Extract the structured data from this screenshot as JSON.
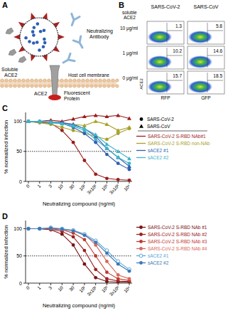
{
  "diagram": {
    "label": "A",
    "soluble_ace2": [
      "Soluble",
      "ACE2"
    ],
    "neutralizing_antibody": [
      "Neutralizing",
      "Antibody"
    ],
    "membrane": "Host cell membrane",
    "receptor": "ACE2",
    "fluorescent_protein": [
      "Fluorescent",
      "Protein"
    ]
  },
  "flow": {
    "label": "B",
    "title": [
      "soluble",
      "ACE2"
    ],
    "columns": [
      "SARS-CoV-2",
      "SARS-CoV"
    ],
    "rows": [
      {
        "label": "10 µg/ml",
        "percents": [
          1.3,
          5.8
        ]
      },
      {
        "label": "1 µg/ml",
        "percents": [
          10.2,
          14.6
        ]
      },
      {
        "label": "0 µg/ml",
        "percents": [
          15.7,
          18.5
        ]
      }
    ],
    "y_label": "ACE2",
    "x_labels": [
      "RFP",
      "GFP"
    ]
  },
  "chart_data": [
    {
      "type": "line",
      "label": "C",
      "xlabel": "Neutralizing compound (ng/ml)",
      "ylabel": "% normalized infection",
      "categories": [
        "0",
        "1",
        "3",
        "10",
        "30",
        "10²",
        "3x10²",
        "10³",
        "3x10³",
        "10⁴"
      ],
      "ylim": [
        0,
        115
      ],
      "yticks": [
        0,
        50,
        100
      ],
      "threshold": 50,
      "marker_legend": [
        {
          "name": "SARS-CoV-2",
          "marker": "circle"
        },
        {
          "name": "SARS-CoV",
          "marker": "triangle"
        }
      ],
      "series": [
        {
          "name": "SARS-CoV-2 S-RBD NAb#1",
          "color": "#9b1c1c",
          "lines": [
            {
              "marker": "circle",
              "values": [
                100,
                98,
                97,
                85,
                65,
                35,
                12,
                5,
                3,
                2
              ]
            },
            {
              "marker": "triangle",
              "values": [
                100,
                100,
                102,
                100,
                104,
                108,
                110,
                108,
                110,
                105
              ]
            }
          ]
        },
        {
          "name": "SARS-CoV-2 S-RBD non-NAb",
          "color": "#a6a12a",
          "lines": [
            {
              "marker": "circle",
              "values": [
                100,
                98,
                95,
                90,
                85,
                80,
                75,
                70,
                80,
                88
              ]
            },
            {
              "marker": "triangle",
              "values": [
                100,
                100,
                98,
                97,
                95,
                93,
                100,
                95,
                85,
                90
              ]
            }
          ]
        },
        {
          "name": "sACE2 #1",
          "color": "#2f5fb3",
          "lines": [
            {
              "marker": "circle",
              "values": [
                100,
                100,
                98,
                97,
                90,
                80,
                65,
                45,
                30,
                20
              ]
            },
            {
              "marker": "triangle",
              "values": [
                100,
                100,
                99,
                98,
                95,
                88,
                75,
                55,
                40,
                25
              ]
            }
          ]
        },
        {
          "name": "sACE2 #2",
          "color": "#3fb3c9",
          "lines": [
            {
              "marker": "circle",
              "values": [
                100,
                100,
                99,
                96,
                92,
                85,
                70,
                55,
                40,
                30
              ]
            },
            {
              "marker": "triangle",
              "values": [
                100,
                100,
                98,
                96,
                93,
                88,
                78,
                62,
                50,
                38
              ]
            }
          ]
        }
      ]
    },
    {
      "type": "line",
      "label": "D",
      "xlabel": "Neutralizing compound (ng/ml)",
      "ylabel": "% normalized infection",
      "categories": [
        "0",
        "1",
        "3",
        "10",
        "30",
        "10²",
        "3x10²",
        "10³",
        "3x10³",
        "10⁴"
      ],
      "ylim": [
        0,
        115
      ],
      "yticks": [
        0,
        50,
        100
      ],
      "threshold": 50,
      "series": [
        {
          "name": "SARS-CoV-2 S-RBD NAb #1",
          "color": "#7a1414",
          "marker": "circle",
          "values": [
            100,
            100,
            98,
            90,
            70,
            35,
            10,
            3,
            2,
            2
          ]
        },
        {
          "name": "SARS-CoV-2 S-RBD NAb #2",
          "color": "#9b2020",
          "marker": "circle",
          "values": [
            100,
            100,
            99,
            95,
            85,
            60,
            25,
            8,
            4,
            3
          ]
        },
        {
          "name": "SARS-CoV-2 S-RBD NAb #3",
          "color": "#bd3a30",
          "marker": "circle",
          "values": [
            100,
            100,
            100,
            98,
            92,
            80,
            50,
            20,
            8,
            5
          ]
        },
        {
          "name": "SARS-CoV-2 S-RBD NAb #4",
          "color": "#d9675a",
          "marker": "circle",
          "values": [
            100,
            100,
            100,
            99,
            97,
            90,
            70,
            40,
            15,
            8
          ]
        },
        {
          "name": "sACE2 #1",
          "color": "#5aa6d6",
          "marker": "open_circle",
          "values": [
            100,
            100,
            102,
            100,
            97,
            90,
            78,
            60,
            40,
            25
          ]
        },
        {
          "name": "sACE2 #2",
          "color": "#3a78b8",
          "marker": "circle",
          "values": [
            100,
            100,
            101,
            99,
            96,
            88,
            75,
            55,
            35,
            22
          ]
        }
      ]
    }
  ]
}
